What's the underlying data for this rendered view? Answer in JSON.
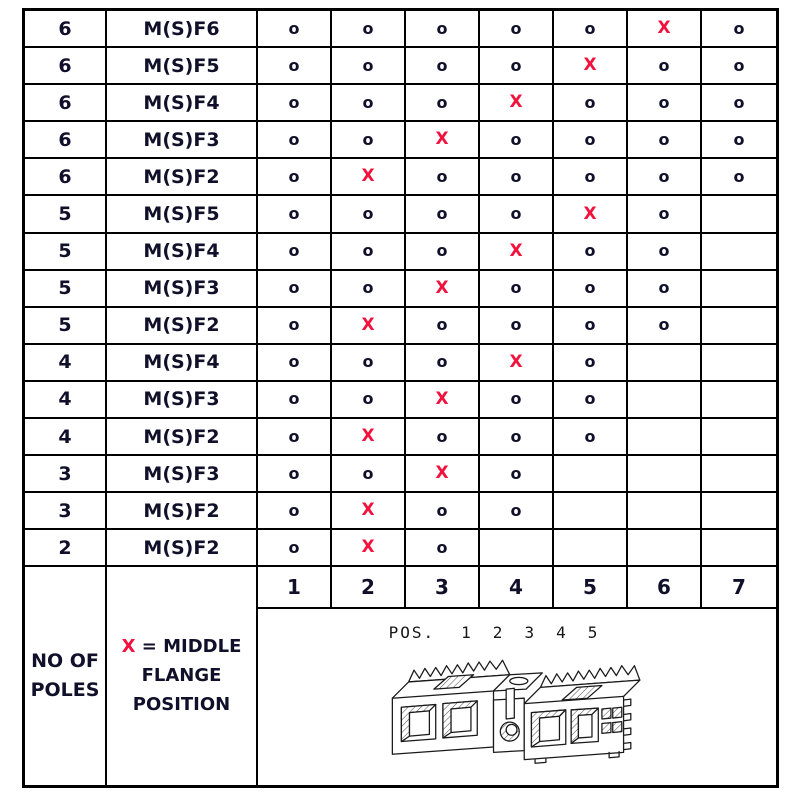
{
  "table": {
    "rows": [
      {
        "poles": "6",
        "variant": "M(S)F6",
        "cells": [
          "o",
          "o",
          "o",
          "o",
          "o",
          "X",
          "o"
        ]
      },
      {
        "poles": "6",
        "variant": "M(S)F5",
        "cells": [
          "o",
          "o",
          "o",
          "o",
          "X",
          "o",
          "o"
        ]
      },
      {
        "poles": "6",
        "variant": "M(S)F4",
        "cells": [
          "o",
          "o",
          "o",
          "X",
          "o",
          "o",
          "o"
        ]
      },
      {
        "poles": "6",
        "variant": "M(S)F3",
        "cells": [
          "o",
          "o",
          "X",
          "o",
          "o",
          "o",
          "o"
        ]
      },
      {
        "poles": "6",
        "variant": "M(S)F2",
        "cells": [
          "o",
          "X",
          "o",
          "o",
          "o",
          "o",
          "o"
        ]
      },
      {
        "poles": "5",
        "variant": "M(S)F5",
        "cells": [
          "o",
          "o",
          "o",
          "o",
          "X",
          "o",
          ""
        ]
      },
      {
        "poles": "5",
        "variant": "M(S)F4",
        "cells": [
          "o",
          "o",
          "o",
          "X",
          "o",
          "o",
          ""
        ]
      },
      {
        "poles": "5",
        "variant": "M(S)F3",
        "cells": [
          "o",
          "o",
          "X",
          "o",
          "o",
          "o",
          ""
        ]
      },
      {
        "poles": "5",
        "variant": "M(S)F2",
        "cells": [
          "o",
          "X",
          "o",
          "o",
          "o",
          "o",
          ""
        ]
      },
      {
        "poles": "4",
        "variant": "M(S)F4",
        "cells": [
          "o",
          "o",
          "o",
          "X",
          "o",
          "",
          ""
        ]
      },
      {
        "poles": "4",
        "variant": "M(S)F3",
        "cells": [
          "o",
          "o",
          "X",
          "o",
          "o",
          "",
          ""
        ]
      },
      {
        "poles": "4",
        "variant": "M(S)F2",
        "cells": [
          "o",
          "X",
          "o",
          "o",
          "o",
          "",
          ""
        ]
      },
      {
        "poles": "3",
        "variant": "M(S)F3",
        "cells": [
          "o",
          "o",
          "X",
          "o",
          "",
          "",
          ""
        ]
      },
      {
        "poles": "3",
        "variant": "M(S)F2",
        "cells": [
          "o",
          "X",
          "o",
          "o",
          "",
          "",
          ""
        ]
      },
      {
        "poles": "2",
        "variant": "M(S)F2",
        "cells": [
          "o",
          "X",
          "o",
          "",
          "",
          "",
          ""
        ]
      }
    ],
    "position_headers": [
      "1",
      "2",
      "3",
      "4",
      "5",
      "6",
      "7"
    ]
  },
  "legend": {
    "poles_line1": "NO OF",
    "poles_line2": "POLES",
    "x_symbol": "X",
    "x_rest": "= MIDDLE",
    "x_line2": "FLANGE",
    "x_line3": "POSITION"
  },
  "diagram": {
    "pos_label": "POS.",
    "pos_numbers": [
      "1",
      "2",
      "3",
      "4",
      "5"
    ]
  },
  "colors": {
    "x_mark": "#f3123d",
    "text": "#10102a",
    "grid_line": "#000000"
  }
}
